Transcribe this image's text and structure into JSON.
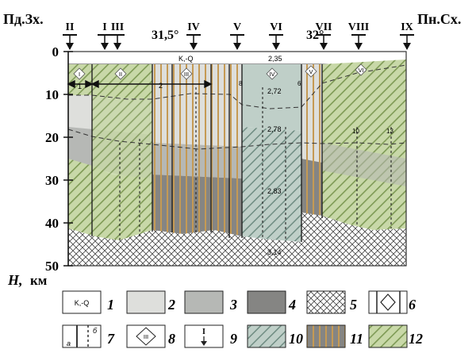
{
  "corners": {
    "left": "Пд.Зх.",
    "right": "Пн.Сх."
  },
  "station_labels": [
    "II",
    "I",
    "III",
    "IV",
    "V",
    "VI",
    "VII",
    "VIII",
    "IX"
  ],
  "longitudes": [
    "31,5°",
    "32°"
  ],
  "depth_ticks": [
    "0",
    "10",
    "20",
    "30",
    "40",
    "50"
  ],
  "axis_label": {
    "symbol": "H,",
    "unit": "км"
  },
  "block_labels": [
    "I",
    "II",
    "III",
    "IV",
    "V",
    "VI"
  ],
  "arrow_labels": [
    "1",
    "2"
  ],
  "surface_text": {
    "kq": "K,-Q",
    "value": "2,35"
  },
  "densities": [
    "2,72",
    "2,78",
    "2,83",
    "3,14"
  ],
  "well_labels": [
    "8",
    "6",
    "10",
    "13"
  ],
  "legend": {
    "row1": [
      {
        "num": "1",
        "sample_text": "K,-Q"
      },
      {
        "num": "2"
      },
      {
        "num": "3"
      },
      {
        "num": "4"
      },
      {
        "num": "5"
      },
      {
        "num": "6"
      }
    ],
    "row2": [
      {
        "num": "7",
        "sub_a": "а",
        "sub_b": "б"
      },
      {
        "num": "8",
        "sample_text": "III"
      },
      {
        "num": "9",
        "sample_text": "I"
      },
      {
        "num": "10"
      },
      {
        "num": "11"
      },
      {
        "num": "12"
      }
    ]
  },
  "colors": {
    "light_gray": "#dedfdc",
    "mid_gray": "#b6b8b5",
    "dark_gray": "#858583",
    "green": "#c8d8a8",
    "blue_gray": "#bfcfc8",
    "orange": "#c59a54",
    "hatch_green": "#7e9a55",
    "hatch_blue": "#6f8c82"
  }
}
